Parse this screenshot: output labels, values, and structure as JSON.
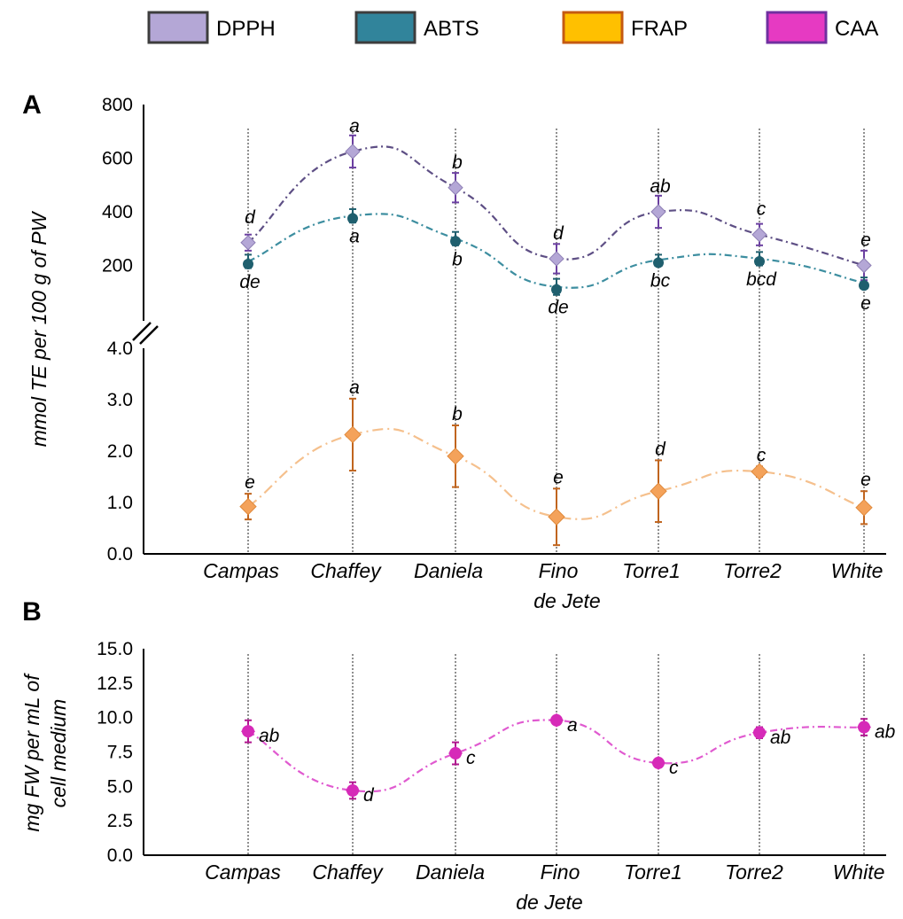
{
  "legend": [
    {
      "name": "DPPH",
      "color": "#b4a7d6",
      "stroke": "#3d3d3d"
    },
    {
      "name": "ABTS",
      "color": "#31849b",
      "stroke": "#3d3d3d"
    },
    {
      "name": "FRAP",
      "color": "#ffc000",
      "stroke": "#c55a11"
    },
    {
      "name": "CAA",
      "color": "#e63ac2",
      "stroke": "#7030a0"
    }
  ],
  "chart_data": [
    {
      "panel": "A",
      "type": "line",
      "ylabel": "mmol TE per 100 g of PW",
      "categories": [
        "Campas",
        "Chaffey",
        "Daniela",
        "Fino de Jete",
        "Torre1",
        "Torre2",
        "White"
      ],
      "upper_axis": {
        "ylim": [
          0,
          800
        ],
        "ticks": [
          "200",
          "400",
          "600",
          "800"
        ]
      },
      "lower_axis": {
        "ylim": [
          0,
          4
        ],
        "ticks": [
          "0.0",
          "1.0",
          "2.0",
          "3.0",
          "4.0"
        ]
      },
      "axis_break": true,
      "series": [
        {
          "name": "DPPH",
          "axis": "upper",
          "color": "#b4a7d6",
          "line_color": "#5e4f85",
          "values": [
            285,
            625,
            490,
            225,
            400,
            315,
            200
          ],
          "errors": [
            30,
            60,
            55,
            55,
            60,
            40,
            55
          ],
          "letters": [
            "d",
            "a",
            "b",
            "d",
            "ab",
            "c",
            "e"
          ]
        },
        {
          "name": "ABTS",
          "axis": "upper",
          "color": "#1f5f6e",
          "line_color": "#3d8ea0",
          "values": [
            215,
            385,
            300,
            120,
            220,
            225,
            135
          ],
          "errors": [
            25,
            25,
            25,
            30,
            20,
            25,
            20
          ],
          "letters": [
            "de",
            "a",
            "b",
            "de",
            "bc",
            "bcd",
            "e"
          ]
        },
        {
          "name": "FRAP",
          "axis": "lower",
          "color": "#f4a25a",
          "line_color": "#f5c08d",
          "values": [
            0.92,
            2.32,
            1.9,
            0.72,
            1.22,
            1.6,
            0.9
          ],
          "errors": [
            0.25,
            0.7,
            0.6,
            0.55,
            0.6,
            0.1,
            0.32
          ],
          "letters": [
            "e",
            "a",
            "b",
            "e",
            "d",
            "c",
            "e"
          ]
        }
      ]
    },
    {
      "panel": "B",
      "type": "line",
      "ylabel": "mg FW per mL of cell medium",
      "categories": [
        "Campas",
        "Chaffey",
        "Daniela",
        "Fino de Jete",
        "Torre1",
        "Torre2",
        "White"
      ],
      "ylim": [
        0,
        15
      ],
      "ticks": [
        "0.0",
        "2.5",
        "5.0",
        "7.5",
        "10.0",
        "12.5",
        "15.0"
      ],
      "series": [
        {
          "name": "CAA",
          "color": "#d62ab8",
          "line_color": "#e05ad0",
          "values": [
            9.0,
            4.7,
            7.4,
            9.8,
            6.7,
            8.9,
            9.3
          ],
          "errors": [
            0.8,
            0.6,
            0.8,
            0.3,
            0.3,
            0.4,
            0.6
          ],
          "letters": [
            "ab",
            "d",
            "c",
            "a",
            "c",
            "ab",
            "ab"
          ]
        }
      ]
    }
  ]
}
